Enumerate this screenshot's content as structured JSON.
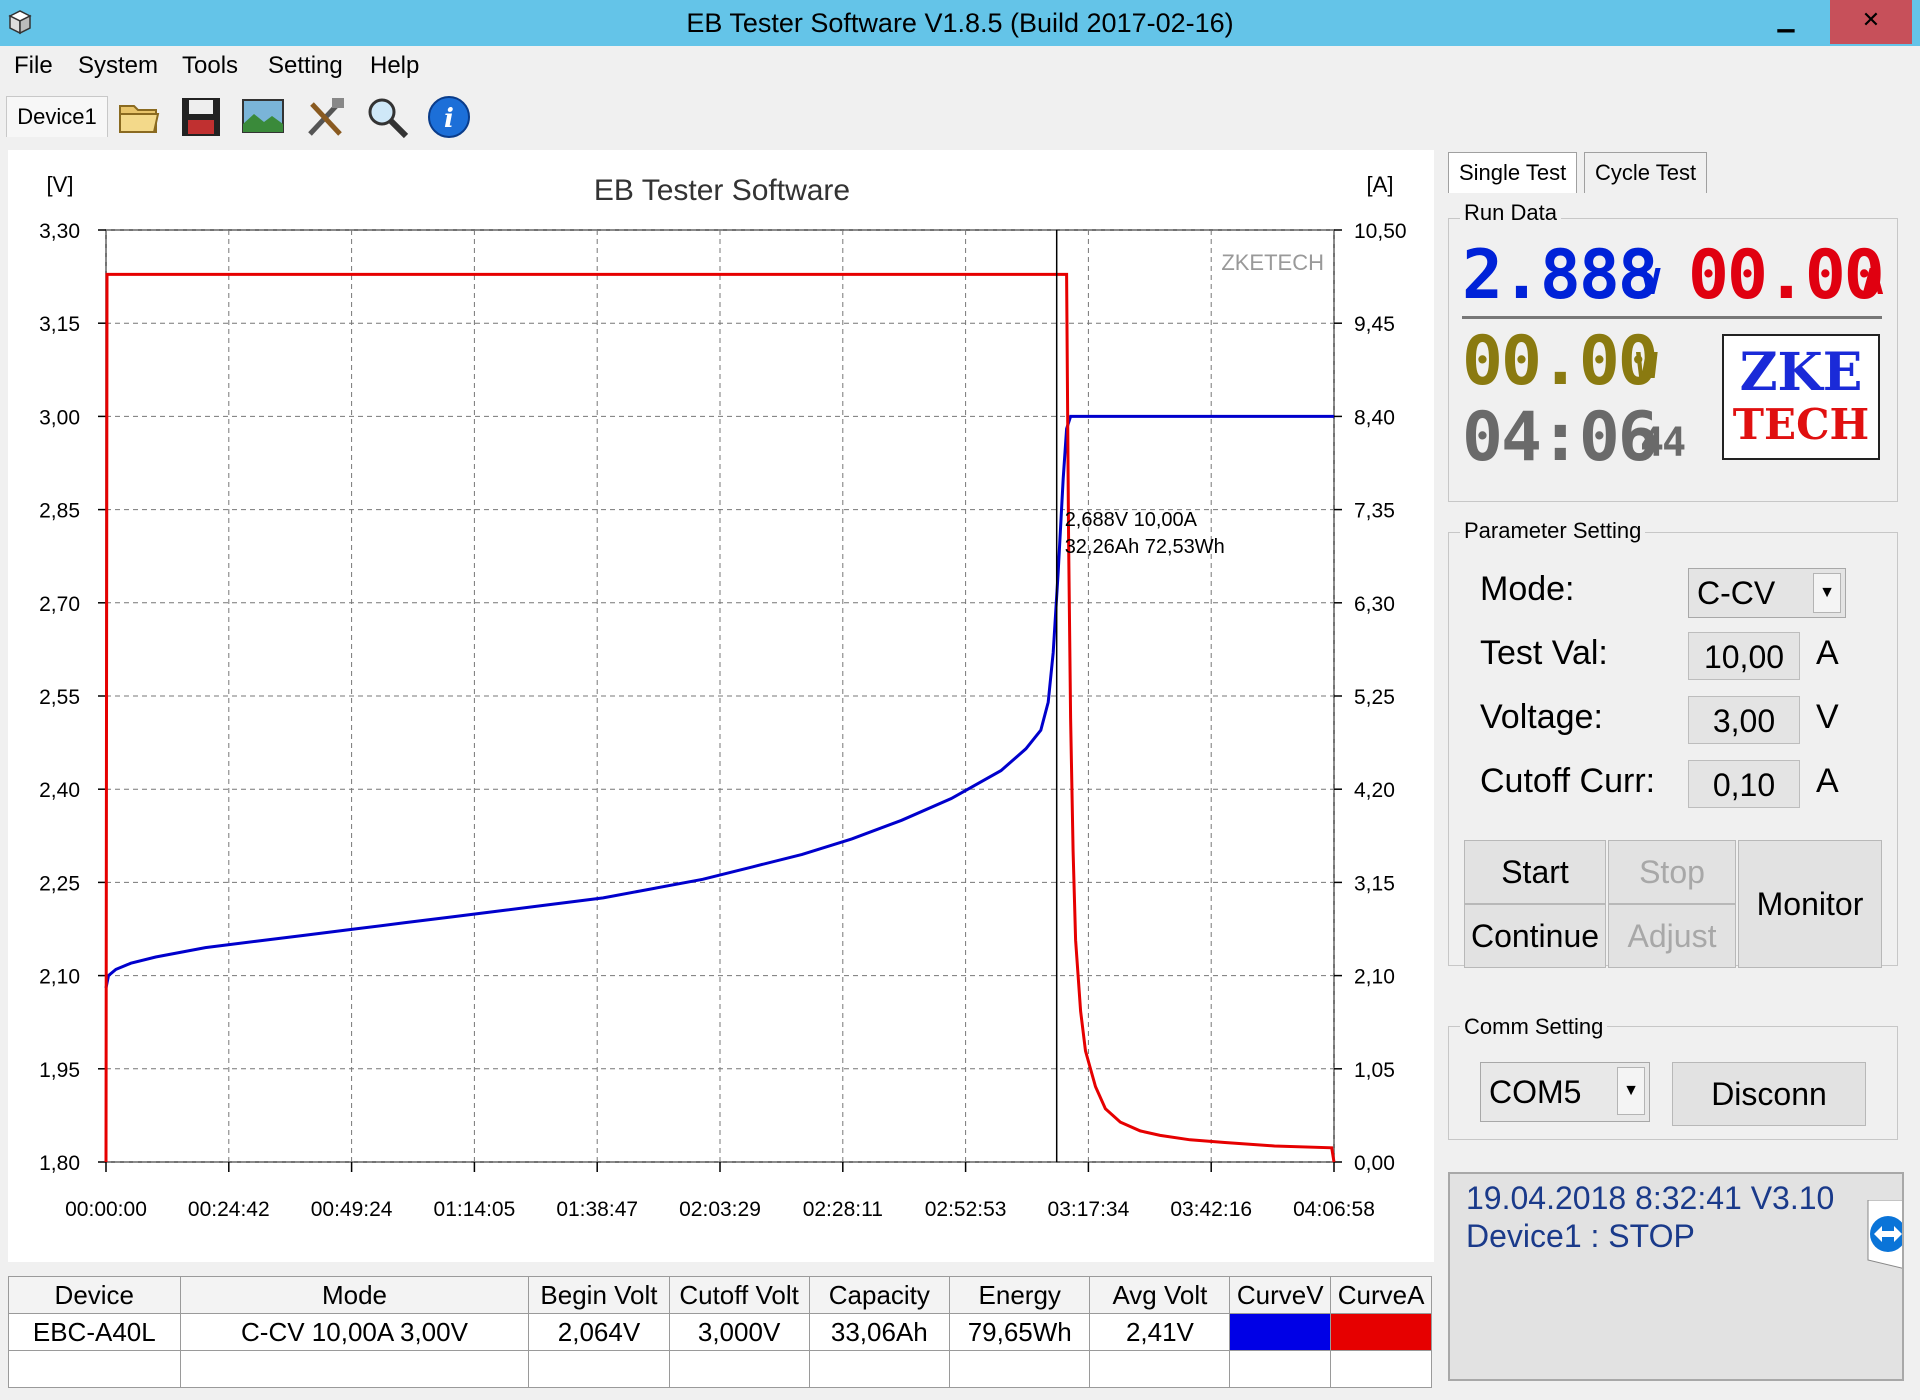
{
  "window": {
    "title": "EB Tester Software V1.8.5 (Build 2017-02-16)",
    "minimize": "▁",
    "restore": "❐",
    "close": "✕"
  },
  "menu": [
    "File",
    "System",
    "Tools",
    "Setting",
    "Help"
  ],
  "toolbar": {
    "device_tab": "Device1",
    "icons": [
      "folder-icon",
      "save-icon",
      "image-icon",
      "tools-icon",
      "magnifier-icon",
      "info-icon"
    ]
  },
  "chart_data": {
    "type": "line",
    "title": "EB Tester Software",
    "watermark": "ZKETECH",
    "left_unit": "[V]",
    "right_unit": "[A]",
    "left_ticks": [
      "3,30",
      "3,15",
      "3,00",
      "2,85",
      "2,70",
      "2,55",
      "2,40",
      "2,25",
      "2,10",
      "1,95",
      "1,80"
    ],
    "right_ticks": [
      "10,50",
      "9,45",
      "8,40",
      "7,35",
      "6,30",
      "5,25",
      "4,20",
      "3,15",
      "2,10",
      "1,05",
      "0,00"
    ],
    "x_ticks": [
      "00:00:00",
      "00:24:42",
      "00:49:24",
      "01:14:05",
      "01:38:47",
      "02:03:29",
      "02:28:11",
      "02:52:53",
      "03:17:34",
      "03:42:16",
      "04:06:58"
    ],
    "x_range_min": [
      0,
      246.97
    ],
    "ylim_v": [
      1.8,
      3.3
    ],
    "ylim_a": [
      0.0,
      10.5
    ],
    "grid": true,
    "series": [
      {
        "name": "CurveV",
        "color": "#0000cc",
        "unit": "V",
        "x_min": [
          0,
          0.5,
          2,
          5,
          10,
          20,
          30,
          40,
          50,
          60,
          70,
          80,
          90,
          100,
          110,
          120,
          130,
          140,
          150,
          160,
          170,
          180,
          185,
          188,
          189.5,
          190.5,
          191.5,
          192.5,
          193.2,
          194,
          246.97
        ],
        "values": [
          2.08,
          2.1,
          2.11,
          2.12,
          2.13,
          2.145,
          2.155,
          2.165,
          2.175,
          2.185,
          2.195,
          2.205,
          2.215,
          2.225,
          2.24,
          2.255,
          2.275,
          2.295,
          2.32,
          2.35,
          2.385,
          2.43,
          2.465,
          2.495,
          2.54,
          2.62,
          2.75,
          2.9,
          2.98,
          3.0,
          3.0
        ]
      },
      {
        "name": "CurveA",
        "color": "#e60000",
        "unit": "A",
        "x_min": [
          0,
          0.2,
          0.4,
          193.2,
          193.6,
          194.0,
          194.5,
          195,
          196,
          197,
          199,
          201,
          204,
          208,
          212,
          218,
          225,
          235,
          246.5,
          246.97
        ],
        "values": [
          0.0,
          10.0,
          10.0,
          10.0,
          7.0,
          5.0,
          3.5,
          2.5,
          1.7,
          1.25,
          0.85,
          0.6,
          0.45,
          0.35,
          0.3,
          0.25,
          0.22,
          0.18,
          0.16,
          0.0
        ]
      }
    ],
    "cursor": {
      "x_min": 191.2,
      "label_line1": "2,688V   10,00A",
      "label_line2": "32,26Ah 72,53Wh"
    }
  },
  "tabs": [
    "Single Test",
    "Cycle Test"
  ],
  "run_data": {
    "label": "Run Data",
    "voltage": "2.888",
    "voltage_unit": "V",
    "current": "00.00",
    "current_unit": "A",
    "power": "00.00",
    "power_unit": "W",
    "time_hm": "04:06",
    "time_s": "44",
    "logo_top": "ZKE",
    "logo_bottom": "TECH"
  },
  "parameters": {
    "label": "Parameter Setting",
    "mode_label": "Mode:",
    "mode_value": "C-CV",
    "test_label": "Test Val:",
    "test_value": "10,00",
    "test_unit": "A",
    "voltage_label": "Voltage:",
    "voltage_value": "3,00",
    "voltage_unit": "V",
    "cutoff_label": "Cutoff Curr:",
    "cutoff_value": "0,10",
    "cutoff_unit": "A"
  },
  "buttons": {
    "start": "Start",
    "stop": "Stop",
    "continue": "Continue",
    "adjust": "Adjust",
    "monitor": "Monitor"
  },
  "comm": {
    "label": "Comm Setting",
    "port": "COM5",
    "disconn": "Disconn"
  },
  "status": {
    "line1": "19.04.2018 8:32:41   V3.10",
    "line2": "Device1 : STOP"
  },
  "table": {
    "headers": [
      "Device",
      "Mode",
      "Begin Volt",
      "Cutoff Volt",
      "Capacity",
      "Energy",
      "Avg Volt",
      "CurveV",
      "CurveA"
    ],
    "row": [
      "EBC-A40L",
      "C-CV  10,00A  3,00V",
      "2,064V",
      "3,000V",
      "33,06Ah",
      "79,65Wh",
      "2,41V"
    ],
    "curve_colors": [
      "#0000e6",
      "#e60000"
    ]
  }
}
